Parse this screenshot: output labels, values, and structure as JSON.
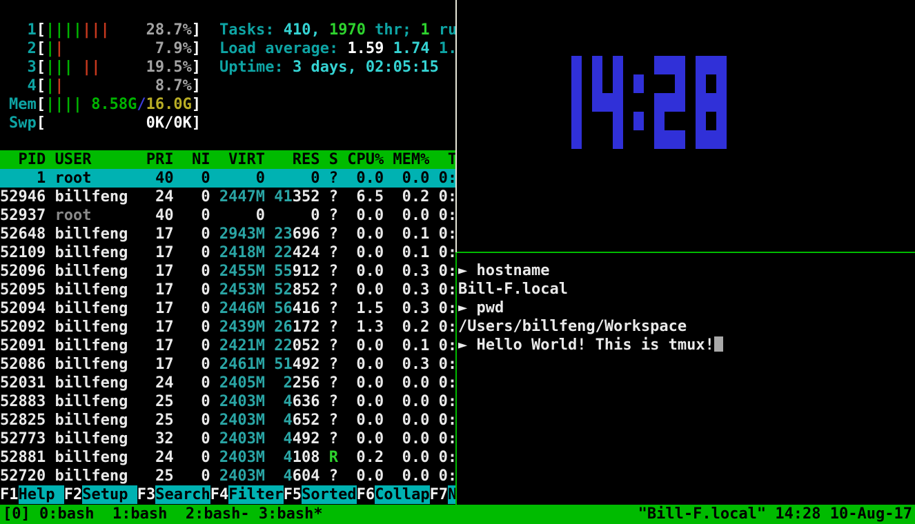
{
  "colors": {
    "status_green": "#00bb00",
    "selection_cyan": "#00b2b2",
    "clock_blue": "#3030d8",
    "border_inactive": "#e8e8da",
    "border_active": "#00bb00"
  },
  "htop": {
    "meters": {
      "rows": [
        {
          "label": "1",
          "bars": "ggggrrr",
          "value": [
            {
              "t": "28.7%",
              "c": "gray"
            }
          ]
        },
        {
          "label": "2",
          "bars": "gr",
          "value": [
            {
              "t": "7.9%",
              "c": "gray"
            }
          ]
        },
        {
          "label": "3",
          "bars": "ggg rr",
          "value": [
            {
              "t": "19.5%",
              "c": "gray"
            }
          ]
        },
        {
          "label": "4",
          "bars": "gr",
          "value": [
            {
              "t": "8.7%",
              "c": "gray"
            }
          ]
        },
        {
          "label": "Mem",
          "bars": "gggg",
          "value": [
            {
              "t": "8.58G",
              "c": "green"
            },
            {
              "t": "/",
              "c": "blue"
            },
            {
              "t": "16.0G",
              "c": "yellow"
            }
          ]
        },
        {
          "label": "Swp",
          "bars": "",
          "value": [
            {
              "t": "0K/0K",
              "c": "bwhite"
            }
          ]
        }
      ]
    },
    "summary": {
      "rows": [
        {
          "segments": [
            {
              "t": "Tasks: ",
              "c": "cyan"
            },
            {
              "t": "410, ",
              "c": "bcyan"
            },
            {
              "t": "1970",
              "c": "bgreen"
            },
            {
              "t": " thr; ",
              "c": "cyan"
            },
            {
              "t": "1",
              "c": "bgreen"
            },
            {
              "t": " ru",
              "c": "cyan"
            }
          ]
        },
        {
          "segments": [
            {
              "t": "Load average: ",
              "c": "cyan"
            },
            {
              "t": "1.59 ",
              "c": "bwhite"
            },
            {
              "t": "1.74 ",
              "c": "bcyan"
            },
            {
              "t": "1.",
              "c": "cyan"
            }
          ]
        },
        {
          "segments": [
            {
              "t": "Uptime: ",
              "c": "cyan"
            },
            {
              "t": "3 days, 02:05:15",
              "c": "bcyan"
            }
          ]
        }
      ]
    },
    "table": {
      "headers": [
        "PID",
        "USER",
        "PRI",
        "NI",
        "VIRT",
        "RES",
        "S",
        "CPU%",
        "MEM%",
        "T"
      ],
      "rows": [
        {
          "pid": "1",
          "user": "root",
          "pri": "40",
          "ni": "0",
          "virt": "0",
          "res": "0",
          "s": "?",
          "cpu": "0.0",
          "mem": "0.0",
          "time": "0:",
          "selected": true
        },
        {
          "pid": "52946",
          "user": "billfeng",
          "pri": "24",
          "ni": "0",
          "virt": "2447M",
          "res": "41352",
          "s": "?",
          "cpu": "6.5",
          "mem": "0.2",
          "time": "0:"
        },
        {
          "pid": "52937",
          "user": "root",
          "pri": "40",
          "ni": "0",
          "virt": "0",
          "res": "0",
          "s": "?",
          "cpu": "0.0",
          "mem": "0.0",
          "time": "0:"
        },
        {
          "pid": "52648",
          "user": "billfeng",
          "pri": "17",
          "ni": "0",
          "virt": "2943M",
          "res": "23696",
          "s": "?",
          "cpu": "0.0",
          "mem": "0.1",
          "time": "0:"
        },
        {
          "pid": "52109",
          "user": "billfeng",
          "pri": "17",
          "ni": "0",
          "virt": "2418M",
          "res": "22424",
          "s": "?",
          "cpu": "0.0",
          "mem": "0.1",
          "time": "0:"
        },
        {
          "pid": "52096",
          "user": "billfeng",
          "pri": "17",
          "ni": "0",
          "virt": "2455M",
          "res": "55912",
          "s": "?",
          "cpu": "0.0",
          "mem": "0.3",
          "time": "0:"
        },
        {
          "pid": "52095",
          "user": "billfeng",
          "pri": "17",
          "ni": "0",
          "virt": "2453M",
          "res": "52852",
          "s": "?",
          "cpu": "0.0",
          "mem": "0.3",
          "time": "0:"
        },
        {
          "pid": "52094",
          "user": "billfeng",
          "pri": "17",
          "ni": "0",
          "virt": "2446M",
          "res": "56416",
          "s": "?",
          "cpu": "1.5",
          "mem": "0.3",
          "time": "0:"
        },
        {
          "pid": "52092",
          "user": "billfeng",
          "pri": "17",
          "ni": "0",
          "virt": "2439M",
          "res": "26172",
          "s": "?",
          "cpu": "1.3",
          "mem": "0.2",
          "time": "0:"
        },
        {
          "pid": "52091",
          "user": "billfeng",
          "pri": "17",
          "ni": "0",
          "virt": "2421M",
          "res": "22052",
          "s": "?",
          "cpu": "0.0",
          "mem": "0.1",
          "time": "0:"
        },
        {
          "pid": "52086",
          "user": "billfeng",
          "pri": "17",
          "ni": "0",
          "virt": "2461M",
          "res": "51492",
          "s": "?",
          "cpu": "0.0",
          "mem": "0.3",
          "time": "0:"
        },
        {
          "pid": "52031",
          "user": "billfeng",
          "pri": "24",
          "ni": "0",
          "virt": "2405M",
          "res": "2256",
          "s": "?",
          "cpu": "0.0",
          "mem": "0.0",
          "time": "0:"
        },
        {
          "pid": "52883",
          "user": "billfeng",
          "pri": "25",
          "ni": "0",
          "virt": "2403M",
          "res": "4636",
          "s": "?",
          "cpu": "0.0",
          "mem": "0.0",
          "time": "0:"
        },
        {
          "pid": "52825",
          "user": "billfeng",
          "pri": "25",
          "ni": "0",
          "virt": "2403M",
          "res": "4652",
          "s": "?",
          "cpu": "0.0",
          "mem": "0.0",
          "time": "0:"
        },
        {
          "pid": "52773",
          "user": "billfeng",
          "pri": "32",
          "ni": "0",
          "virt": "2403M",
          "res": "4492",
          "s": "?",
          "cpu": "0.0",
          "mem": "0.0",
          "time": "0:"
        },
        {
          "pid": "52881",
          "user": "billfeng",
          "pri": "24",
          "ni": "0",
          "virt": "2403M",
          "res": "4108",
          "s": "R",
          "cpu": "0.2",
          "mem": "0.0",
          "time": "0:"
        },
        {
          "pid": "52720",
          "user": "billfeng",
          "pri": "25",
          "ni": "0",
          "virt": "2403M",
          "res": "4604",
          "s": "?",
          "cpu": "0.0",
          "mem": "0.0",
          "time": "0:"
        }
      ]
    },
    "fkeys": [
      {
        "key": "F1",
        "label": "Help "
      },
      {
        "key": "F2",
        "label": "Setup "
      },
      {
        "key": "F3",
        "label": "Search"
      },
      {
        "key": "F4",
        "label": "Filter"
      },
      {
        "key": "F5",
        "label": "Sorted"
      },
      {
        "key": "F6",
        "label": "Collap"
      },
      {
        "key": "F7",
        "label": "N"
      }
    ]
  },
  "clock": {
    "time": "14:28",
    "color": "#3030d8"
  },
  "terminal": {
    "lines": [
      {
        "prompt": "►",
        "text": "hostname"
      },
      {
        "text": "Bill-F.local"
      },
      {
        "prompt": "►",
        "text": "pwd"
      },
      {
        "text": "/Users/billfeng/Workspace"
      },
      {
        "prompt": "►",
        "text": "Hello World! This is tmux!",
        "cursor": true
      }
    ]
  },
  "tmux_status": {
    "session": "[0]",
    "windows": "0:bash  1:bash  2:bash- 3:bash*",
    "right": "\"Bill-F.local\" 14:28 10-Aug-17"
  }
}
